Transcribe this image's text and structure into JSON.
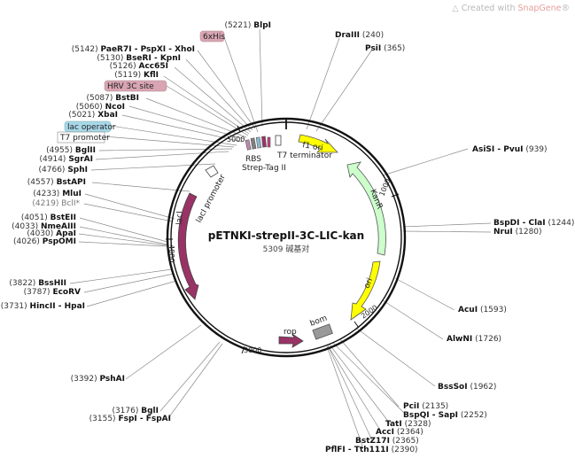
{
  "watermark": {
    "prefix": "Created with ",
    "brand": "SnapGene",
    "suffix": "®"
  },
  "plasmid": {
    "name": "pETNKI-strepII-3C-LIC-kan",
    "size_text": "5309 碱基对",
    "length": 5309
  },
  "ticks": [
    "1000",
    "2000",
    "3000",
    "4000",
    "5000"
  ],
  "sites": [
    {
      "pos": "(5221)",
      "name": "BlpI"
    },
    {
      "pos": "(5142)",
      "name": "PaeR7I - PspXI - XhoI"
    },
    {
      "pos": "(5130)",
      "name": "BseRI - KpnI"
    },
    {
      "pos": "(5126)",
      "name": "Acc65I"
    },
    {
      "pos": "(5119)",
      "name": "KflI"
    },
    {
      "pos": "(5087)",
      "name": "BstBI"
    },
    {
      "pos": "(5060)",
      "name": "NcoI"
    },
    {
      "pos": "(5021)",
      "name": "XbaI"
    },
    {
      "pos": "(4955)",
      "name": "BglII"
    },
    {
      "pos": "(4914)",
      "name": "SgrAI"
    },
    {
      "pos": "(4766)",
      "name": "SphI"
    },
    {
      "pos": "(4557)",
      "name": "BstAPI"
    },
    {
      "pos": "(4233)",
      "name": "MluI"
    },
    {
      "pos": "(4219)",
      "name": "BclI*"
    },
    {
      "pos": "(4051)",
      "name": "BstEII"
    },
    {
      "pos": "(4033)",
      "name": "NmeAIII"
    },
    {
      "pos": "(4030)",
      "name": "ApaI"
    },
    {
      "pos": "(4026)",
      "name": "PspOMI"
    },
    {
      "pos": "(3822)",
      "name": "BssHII"
    },
    {
      "pos": "(3787)",
      "name": "EcoRV"
    },
    {
      "pos": "(3731)",
      "name": "HincII - HpaI"
    },
    {
      "pos": "(3392)",
      "name": "PshAI"
    },
    {
      "pos": "(3176)",
      "name": "BglI"
    },
    {
      "pos": "(3155)",
      "name": "FspI - FspAI"
    },
    {
      "pos": "(240)",
      "name": "DraIII"
    },
    {
      "pos": "(365)",
      "name": "PsiI"
    },
    {
      "pos": "(939)",
      "name": "AsiSI - PvuI"
    },
    {
      "pos": "(1244)",
      "name": "BspDI - ClaI"
    },
    {
      "pos": "(1280)",
      "name": "NruI"
    },
    {
      "pos": "(1593)",
      "name": "AcuI"
    },
    {
      "pos": "(1726)",
      "name": "AlwNI"
    },
    {
      "pos": "(1962)",
      "name": "BssSoI"
    },
    {
      "pos": "(2135)",
      "name": "PciI"
    },
    {
      "pos": "(2252)",
      "name": "BspQI - SapI"
    },
    {
      "pos": "(2328)",
      "name": "TatI"
    },
    {
      "pos": "(2364)",
      "name": "AccI"
    },
    {
      "pos": "(2365)",
      "name": "BstZ17I"
    },
    {
      "pos": "(2390)",
      "name": "PflFI - Tth111I"
    }
  ],
  "boxes": [
    "6xHis",
    "HRV 3C site",
    "lac operator",
    "T7 promoter"
  ],
  "features": {
    "f1_ori": "f1 ori",
    "kanr": "KanR",
    "ori": "ori",
    "bom": "bom",
    "rop": "rop",
    "laci": "lacI",
    "laci_promoter": "lacI promoter",
    "rbs": "RBS",
    "strep_tag": "Strep-Tag II",
    "t7_terminator": "T7 terminator"
  },
  "colors": {
    "f1_ori": "#ffff00",
    "kanr": "#ccffcc",
    "ori": "#ffff00",
    "laci": "#993366",
    "rop": "#993366",
    "bom": "#999999",
    "box_purple": "#d9a5b3",
    "box_blue": "#a8d8e8",
    "box_white": "#ffffff"
  }
}
